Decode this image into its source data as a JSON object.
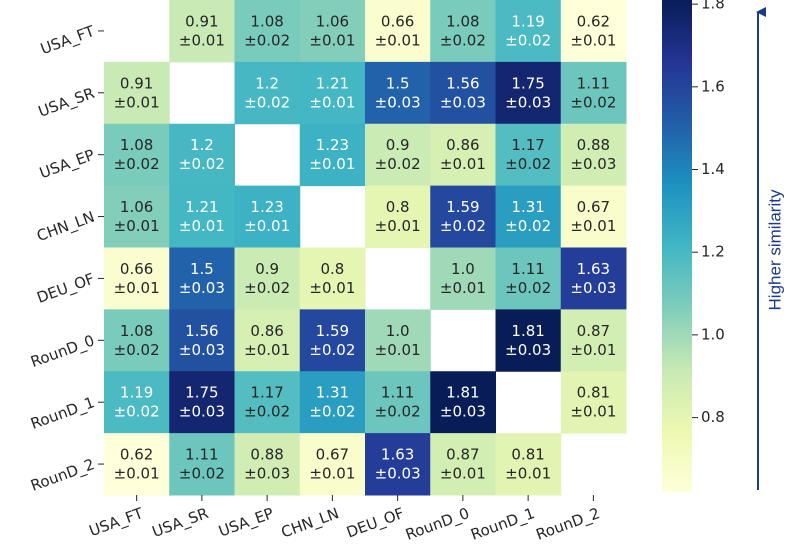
{
  "chart_data": {
    "type": "heatmap",
    "rows": [
      "USA_FT",
      "USA_SR",
      "USA_EP",
      "CHN_LN",
      "DEU_OF",
      "RounD_0",
      "RounD_1",
      "RounD_2"
    ],
    "categories": [
      "USA_FT",
      "USA_SR",
      "USA_EP",
      "CHN_LN",
      "DEU_OF",
      "RounD_0",
      "RounD_1",
      "RounD_2"
    ],
    "values": [
      [
        null,
        0.91,
        1.08,
        1.06,
        0.66,
        1.08,
        1.19,
        0.62
      ],
      [
        0.91,
        null,
        1.2,
        1.21,
        1.5,
        1.56,
        1.75,
        1.11
      ],
      [
        1.08,
        1.2,
        null,
        1.23,
        0.9,
        0.86,
        1.17,
        0.88
      ],
      [
        1.06,
        1.21,
        1.23,
        null,
        0.8,
        1.59,
        1.31,
        0.67
      ],
      [
        0.66,
        1.5,
        0.9,
        0.8,
        null,
        1.0,
        1.11,
        1.63
      ],
      [
        1.08,
        1.56,
        0.86,
        1.59,
        1.0,
        null,
        1.81,
        0.87
      ],
      [
        1.19,
        1.75,
        1.17,
        1.31,
        1.11,
        1.81,
        null,
        0.81
      ],
      [
        0.62,
        1.11,
        0.88,
        0.67,
        1.63,
        0.87,
        0.81,
        null
      ]
    ],
    "value_labels": [
      [
        null,
        "0.91",
        "1.08",
        "1.06",
        "0.66",
        "1.08",
        "1.19",
        "0.62"
      ],
      [
        "0.91",
        null,
        "1.2",
        "1.21",
        "1.5",
        "1.56",
        "1.75",
        "1.11"
      ],
      [
        "1.08",
        "1.2",
        null,
        "1.23",
        "0.9",
        "0.86",
        "1.17",
        "0.88"
      ],
      [
        "1.06",
        "1.21",
        "1.23",
        null,
        "0.8",
        "1.59",
        "1.31",
        "0.67"
      ],
      [
        "0.66",
        "1.5",
        "0.9",
        "0.8",
        null,
        "1.0",
        "1.11",
        "1.63"
      ],
      [
        "1.08",
        "1.56",
        "0.86",
        "1.59",
        "1.0",
        null,
        "1.81",
        "0.87"
      ],
      [
        "1.19",
        "1.75",
        "1.17",
        "1.31",
        "1.11",
        "1.81",
        null,
        "0.81"
      ],
      [
        "0.62",
        "1.11",
        "0.88",
        "0.67",
        "1.63",
        "0.87",
        "0.81",
        null
      ]
    ],
    "errors": [
      [
        null,
        0.01,
        0.02,
        0.01,
        0.01,
        0.02,
        0.02,
        0.01
      ],
      [
        0.01,
        null,
        0.02,
        0.01,
        0.03,
        0.03,
        0.03,
        0.02
      ],
      [
        0.02,
        0.02,
        null,
        0.01,
        0.02,
        0.01,
        0.02,
        0.03
      ],
      [
        0.01,
        0.01,
        0.01,
        null,
        0.01,
        0.02,
        0.02,
        0.01
      ],
      [
        0.01,
        0.03,
        0.02,
        0.01,
        null,
        0.01,
        0.02,
        0.03
      ],
      [
        0.02,
        0.03,
        0.01,
        0.02,
        0.01,
        null,
        0.03,
        0.01
      ],
      [
        0.02,
        0.03,
        0.02,
        0.02,
        0.02,
        0.03,
        null,
        0.01
      ],
      [
        0.01,
        0.02,
        0.03,
        0.01,
        0.03,
        0.01,
        0.01,
        null
      ]
    ],
    "error_labels": [
      [
        null,
        "±0.01",
        "±0.02",
        "±0.01",
        "±0.01",
        "±0.02",
        "±0.02",
        "±0.01"
      ],
      [
        "±0.01",
        null,
        "±0.02",
        "±0.01",
        "±0.03",
        "±0.03",
        "±0.03",
        "±0.02"
      ],
      [
        "±0.02",
        "±0.02",
        null,
        "±0.01",
        "±0.02",
        "±0.01",
        "±0.02",
        "±0.03"
      ],
      [
        "±0.01",
        "±0.01",
        "±0.01",
        null,
        "±0.01",
        "±0.02",
        "±0.02",
        "±0.01"
      ],
      [
        "±0.01",
        "±0.03",
        "±0.02",
        "±0.01",
        null,
        "±0.01",
        "±0.02",
        "±0.03"
      ],
      [
        "±0.02",
        "±0.03",
        "±0.01",
        "±0.02",
        "±0.01",
        null,
        "±0.03",
        "±0.01"
      ],
      [
        "±0.02",
        "±0.03",
        "±0.02",
        "±0.02",
        "±0.02",
        "±0.03",
        null,
        "±0.01"
      ],
      [
        "±0.01",
        "±0.02",
        "±0.03",
        "±0.01",
        "±0.03",
        "±0.01",
        "±0.01",
        null
      ]
    ],
    "colormap": [
      "#ffffd9",
      "#edf8b1",
      "#c7e9b4",
      "#7fcdbb",
      "#41b6c4",
      "#1d91c0",
      "#225ea8",
      "#253494",
      "#081d58"
    ],
    "clim": [
      0.62,
      1.81
    ],
    "cticks": [
      0.8,
      {
        "value": 1,
        "label": "1.0"
      },
      1.2,
      1.4,
      1.6,
      1.8
    ],
    "colorbar_label": "Higher similarity",
    "arrow_color": "#1a3a8c"
  }
}
